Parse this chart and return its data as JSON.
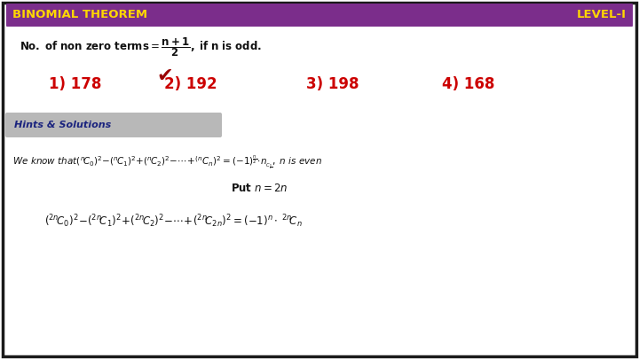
{
  "title_left": "BINOMIAL THEOREM",
  "title_right": "LEVEL-I",
  "header_bg": "#7B2D8B",
  "header_text_color": "#FFD700",
  "outer_border_color": "#1a1a1a",
  "white_bg": "#FFFFFF",
  "light_gray_bg": "#B8B8B8",
  "answer_color": "#CC0000",
  "checkmark_color": "#990000",
  "hints_text_color": "#1a237e",
  "options": [
    "1) 178",
    "2) 192",
    "3) 198",
    "4) 168"
  ],
  "correct_option": 1,
  "hints_label": "Hints & Solutions",
  "header_fontsize": 9.5,
  "formula_fontsize": 8.5,
  "options_fontsize": 12,
  "hints_fontsize": 8,
  "math1_fontsize": 7.5,
  "math2_fontsize": 8.5,
  "math3_fontsize": 8.5
}
